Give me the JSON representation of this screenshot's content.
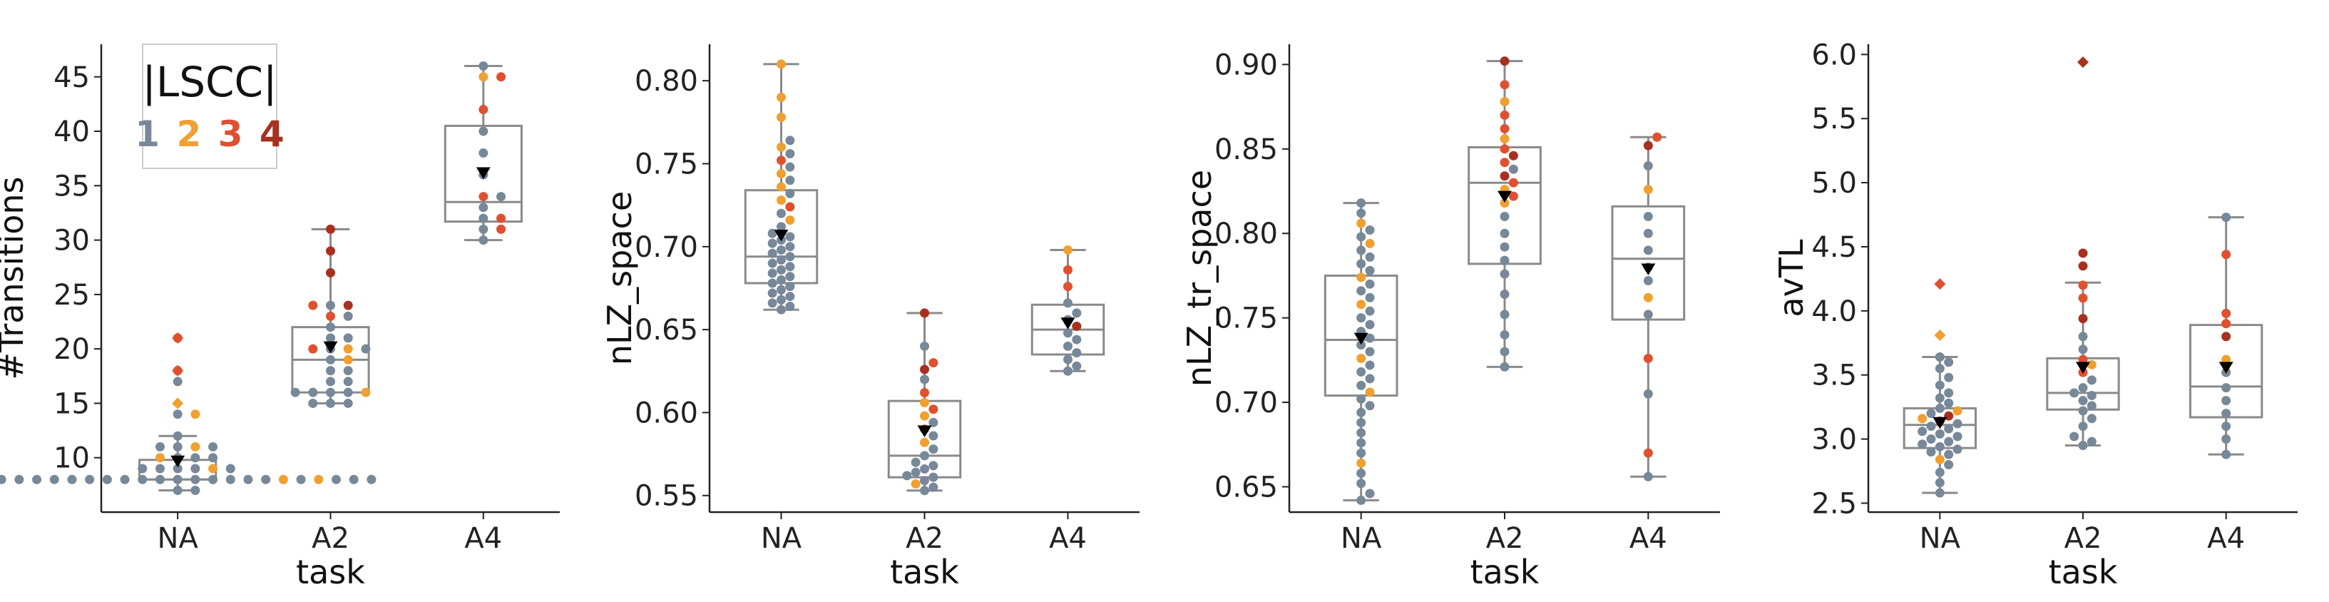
{
  "chart_data": [
    {
      "type": "box",
      "ylabel": "#Transitions",
      "xlabel": "task",
      "categories": [
        "NA",
        "A2",
        "A4"
      ],
      "ylim": [
        5,
        48
      ],
      "yticks": [
        10,
        15,
        20,
        25,
        30,
        35,
        40,
        45
      ],
      "ytick_labels": [
        "10",
        "15",
        "20",
        "25",
        "30",
        "35",
        "40",
        "45"
      ],
      "boxes": [
        {
          "category": "NA",
          "whisker_low": 7,
          "q1": 8,
          "median": 8,
          "q3": 9.8,
          "whisker_high": 12,
          "mean": 9.7
        },
        {
          "category": "A2",
          "whisker_low": 15,
          "q1": 16,
          "median": 19,
          "q3": 22,
          "whisker_high": 31,
          "mean": 20.2
        },
        {
          "category": "A4",
          "whisker_low": 30,
          "q1": 31.7,
          "median": 33.5,
          "q3": 40.5,
          "whisker_high": 46,
          "mean": 36.2
        }
      ],
      "outliers": [
        {
          "category": "NA",
          "value": 21,
          "group": 3
        },
        {
          "category": "NA",
          "value": 18,
          "group": 3
        },
        {
          "category": "NA",
          "value": 15,
          "group": 2
        }
      ],
      "points": [
        {
          "category": "NA",
          "values": [
            7,
            7,
            8,
            8,
            8,
            8,
            8,
            8,
            8,
            8,
            8,
            8,
            8,
            8,
            8,
            8,
            8,
            8,
            8,
            8,
            8,
            8,
            8,
            8,
            8,
            9,
            9,
            9,
            9,
            9,
            9,
            10,
            10,
            10,
            10,
            11,
            11,
            11,
            11,
            12,
            14,
            14,
            17,
            18,
            21
          ],
          "groups": [
            1,
            1,
            1,
            1,
            1,
            1,
            1,
            1,
            1,
            1,
            1,
            1,
            1,
            2,
            1,
            1,
            1,
            2,
            1,
            1,
            1,
            1,
            1,
            1,
            1,
            1,
            1,
            1,
            2,
            1,
            1,
            1,
            1,
            2,
            1,
            1,
            2,
            1,
            1,
            1,
            1,
            2,
            1,
            3,
            3
          ]
        },
        {
          "category": "A2",
          "values": [
            15,
            15,
            15,
            16,
            16,
            16,
            16,
            16,
            17,
            17,
            18,
            18,
            19,
            19,
            20,
            20,
            20,
            20,
            21,
            21,
            22,
            23,
            23,
            24,
            24,
            24,
            27,
            29,
            31
          ],
          "groups": [
            1,
            1,
            1,
            1,
            1,
            1,
            2,
            1,
            1,
            1,
            1,
            1,
            1,
            2,
            1,
            2,
            3,
            1,
            1,
            1,
            1,
            3,
            1,
            1,
            4,
            3,
            4,
            4,
            4
          ]
        },
        {
          "category": "A4",
          "values": [
            30,
            31,
            31,
            32,
            32,
            33,
            34,
            34,
            36,
            38,
            40,
            42,
            45,
            45,
            46
          ],
          "groups": [
            1,
            1,
            3,
            1,
            3,
            1,
            3,
            1,
            1,
            1,
            1,
            3,
            2,
            3,
            1
          ]
        }
      ]
    },
    {
      "type": "box",
      "ylabel": "nLZ_space",
      "xlabel": "task",
      "categories": [
        "NA",
        "A2",
        "A4"
      ],
      "ylim": [
        0.54,
        0.822
      ],
      "yticks": [
        0.55,
        0.6,
        0.65,
        0.7,
        0.75,
        0.8
      ],
      "ytick_labels": [
        "0.55",
        "0.60",
        "0.65",
        "0.70",
        "0.75",
        "0.80"
      ],
      "boxes": [
        {
          "category": "NA",
          "whisker_low": 0.662,
          "q1": 0.678,
          "median": 0.694,
          "q3": 0.734,
          "whisker_high": 0.81,
          "mean": 0.707
        },
        {
          "category": "A2",
          "whisker_low": 0.553,
          "q1": 0.561,
          "median": 0.574,
          "q3": 0.607,
          "whisker_high": 0.66,
          "mean": 0.589
        },
        {
          "category": "A4",
          "whisker_low": 0.625,
          "q1": 0.635,
          "median": 0.65,
          "q3": 0.665,
          "whisker_high": 0.698,
          "mean": 0.654
        }
      ],
      "outliers": [],
      "points": [
        {
          "category": "NA",
          "values": [
            0.662,
            0.664,
            0.666,
            0.668,
            0.67,
            0.672,
            0.674,
            0.676,
            0.678,
            0.68,
            0.682,
            0.684,
            0.686,
            0.688,
            0.69,
            0.692,
            0.694,
            0.696,
            0.698,
            0.7,
            0.702,
            0.704,
            0.706,
            0.708,
            0.712,
            0.716,
            0.72,
            0.724,
            0.728,
            0.732,
            0.736,
            0.74,
            0.744,
            0.748,
            0.752,
            0.756,
            0.76,
            0.764,
            0.778,
            0.79,
            0.81
          ],
          "groups": [
            1,
            1,
            1,
            1,
            1,
            1,
            1,
            1,
            1,
            1,
            1,
            1,
            1,
            1,
            1,
            1,
            1,
            1,
            1,
            1,
            1,
            1,
            1,
            1,
            1,
            2,
            1,
            3,
            2,
            1,
            2,
            1,
            2,
            1,
            3,
            1,
            2,
            1,
            2,
            2,
            2
          ]
        },
        {
          "category": "A2",
          "values": [
            0.553,
            0.555,
            0.557,
            0.559,
            0.561,
            0.562,
            0.564,
            0.566,
            0.568,
            0.57,
            0.574,
            0.578,
            0.582,
            0.586,
            0.59,
            0.594,
            0.598,
            0.602,
            0.606,
            0.612,
            0.62,
            0.626,
            0.63,
            0.64,
            0.66
          ],
          "groups": [
            1,
            1,
            2,
            1,
            1,
            1,
            1,
            1,
            1,
            1,
            1,
            1,
            2,
            1,
            3,
            1,
            2,
            3,
            2,
            3,
            1,
            4,
            3,
            1,
            4
          ]
        },
        {
          "category": "A4",
          "values": [
            0.625,
            0.628,
            0.632,
            0.636,
            0.64,
            0.644,
            0.648,
            0.652,
            0.656,
            0.66,
            0.666,
            0.676,
            0.686,
            0.698
          ],
          "groups": [
            1,
            1,
            1,
            1,
            1,
            1,
            1,
            4,
            1,
            1,
            1,
            3,
            3,
            2
          ]
        }
      ]
    },
    {
      "type": "box",
      "ylabel": "nLZ_tr_space",
      "xlabel": "task",
      "categories": [
        "NA",
        "A2",
        "A4"
      ],
      "ylim": [
        0.635,
        0.912
      ],
      "yticks": [
        0.65,
        0.7,
        0.75,
        0.8,
        0.85,
        0.9
      ],
      "ytick_labels": [
        "0.65",
        "0.70",
        "0.75",
        "0.80",
        "0.85",
        "0.90"
      ],
      "boxes": [
        {
          "category": "NA",
          "whisker_low": 0.642,
          "q1": 0.704,
          "median": 0.737,
          "q3": 0.775,
          "whisker_high": 0.818,
          "mean": 0.738
        },
        {
          "category": "A2",
          "whisker_low": 0.721,
          "q1": 0.782,
          "median": 0.83,
          "q3": 0.851,
          "whisker_high": 0.902,
          "mean": 0.822
        },
        {
          "category": "A4",
          "whisker_low": 0.656,
          "q1": 0.749,
          "median": 0.785,
          "q3": 0.816,
          "whisker_high": 0.857,
          "mean": 0.779
        }
      ],
      "outliers": [],
      "points": [
        {
          "category": "NA",
          "values": [
            0.642,
            0.646,
            0.652,
            0.658,
            0.664,
            0.67,
            0.676,
            0.682,
            0.688,
            0.694,
            0.698,
            0.702,
            0.706,
            0.71,
            0.714,
            0.718,
            0.722,
            0.726,
            0.73,
            0.734,
            0.738,
            0.742,
            0.746,
            0.75,
            0.754,
            0.758,
            0.762,
            0.766,
            0.77,
            0.774,
            0.778,
            0.782,
            0.786,
            0.79,
            0.794,
            0.798,
            0.802,
            0.806,
            0.812,
            0.818
          ],
          "groups": [
            1,
            1,
            1,
            1,
            2,
            1,
            1,
            1,
            1,
            1,
            1,
            1,
            2,
            1,
            1,
            1,
            1,
            2,
            1,
            1,
            1,
            1,
            1,
            1,
            1,
            2,
            1,
            1,
            1,
            2,
            1,
            1,
            1,
            1,
            2,
            1,
            1,
            2,
            1,
            1
          ]
        },
        {
          "category": "A2",
          "values": [
            0.721,
            0.73,
            0.74,
            0.752,
            0.764,
            0.776,
            0.784,
            0.792,
            0.8,
            0.81,
            0.818,
            0.822,
            0.826,
            0.83,
            0.834,
            0.838,
            0.842,
            0.846,
            0.85,
            0.856,
            0.862,
            0.87,
            0.878,
            0.888,
            0.902
          ],
          "groups": [
            1,
            1,
            1,
            1,
            1,
            1,
            1,
            1,
            1,
            1,
            2,
            3,
            2,
            3,
            4,
            1,
            3,
            4,
            3,
            2,
            3,
            3,
            2,
            3,
            4
          ]
        },
        {
          "category": "A4",
          "values": [
            0.656,
            0.67,
            0.705,
            0.726,
            0.752,
            0.762,
            0.772,
            0.78,
            0.79,
            0.8,
            0.81,
            0.826,
            0.84,
            0.852,
            0.857
          ],
          "groups": [
            1,
            3,
            1,
            3,
            1,
            2,
            1,
            1,
            1,
            1,
            1,
            2,
            1,
            4,
            3
          ]
        }
      ]
    },
    {
      "type": "box",
      "ylabel": "avTL",
      "xlabel": "task",
      "categories": [
        "NA",
        "A2",
        "A4"
      ],
      "ylim": [
        2.43,
        6.08
      ],
      "yticks": [
        2.5,
        3.0,
        3.5,
        4.0,
        4.5,
        5.0,
        5.5,
        6.0
      ],
      "ytick_labels": [
        "2.5",
        "3.0",
        "3.5",
        "4.0",
        "4.5",
        "5.0",
        "5.5",
        "6.0"
      ],
      "boxes": [
        {
          "category": "NA",
          "whisker_low": 2.58,
          "q1": 2.93,
          "median": 3.11,
          "q3": 3.24,
          "whisker_high": 3.64,
          "mean": 3.13
        },
        {
          "category": "A2",
          "whisker_low": 2.95,
          "q1": 3.23,
          "median": 3.36,
          "q3": 3.63,
          "whisker_high": 4.22,
          "mean": 3.56
        },
        {
          "category": "A4",
          "whisker_low": 2.88,
          "q1": 3.17,
          "median": 3.41,
          "q3": 3.89,
          "whisker_high": 4.73,
          "mean": 3.56
        }
      ],
      "outliers": [
        {
          "category": "NA",
          "value": 4.21,
          "group": 3
        },
        {
          "category": "NA",
          "value": 3.81,
          "group": 2
        },
        {
          "category": "A2",
          "value": 5.94,
          "group": 4
        }
      ],
      "points": [
        {
          "category": "NA",
          "values": [
            2.58,
            2.66,
            2.74,
            2.8,
            2.84,
            2.88,
            2.9,
            2.92,
            2.94,
            2.96,
            2.98,
            3.0,
            3.02,
            3.04,
            3.06,
            3.08,
            3.1,
            3.12,
            3.14,
            3.16,
            3.18,
            3.2,
            3.22,
            3.24,
            3.28,
            3.32,
            3.36,
            3.42,
            3.48,
            3.55,
            3.6,
            3.64
          ],
          "groups": [
            1,
            1,
            1,
            1,
            2,
            1,
            1,
            1,
            1,
            1,
            1,
            1,
            1,
            1,
            1,
            1,
            1,
            1,
            3,
            2,
            4,
            1,
            2,
            1,
            1,
            1,
            1,
            1,
            1,
            1,
            1,
            1
          ]
        },
        {
          "category": "A2",
          "values": [
            2.95,
            2.98,
            3.02,
            3.1,
            3.16,
            3.22,
            3.26,
            3.3,
            3.34,
            3.36,
            3.4,
            3.46,
            3.52,
            3.58,
            3.62,
            3.7,
            3.8,
            3.94,
            4.1,
            4.2,
            4.35,
            4.45
          ],
          "groups": [
            1,
            1,
            1,
            1,
            1,
            1,
            1,
            1,
            1,
            1,
            1,
            1,
            3,
            2,
            3,
            1,
            1,
            4,
            3,
            3,
            4,
            4
          ]
        },
        {
          "category": "A4",
          "values": [
            2.88,
            3.0,
            3.1,
            3.2,
            3.3,
            3.4,
            3.52,
            3.62,
            3.8,
            3.9,
            3.98,
            4.44,
            4.73
          ],
          "groups": [
            1,
            1,
            1,
            1,
            1,
            1,
            1,
            2,
            4,
            3,
            3,
            3,
            1
          ]
        }
      ]
    }
  ],
  "legend": {
    "title": "|LSCC|",
    "items": [
      "1",
      "2",
      "3",
      "4"
    ],
    "colors": [
      "#778899",
      "#f0a030",
      "#e05030",
      "#a83020"
    ]
  },
  "colors": {
    "box": "#8a8a8a",
    "axis": "#222222",
    "mean_marker": "#000000"
  }
}
